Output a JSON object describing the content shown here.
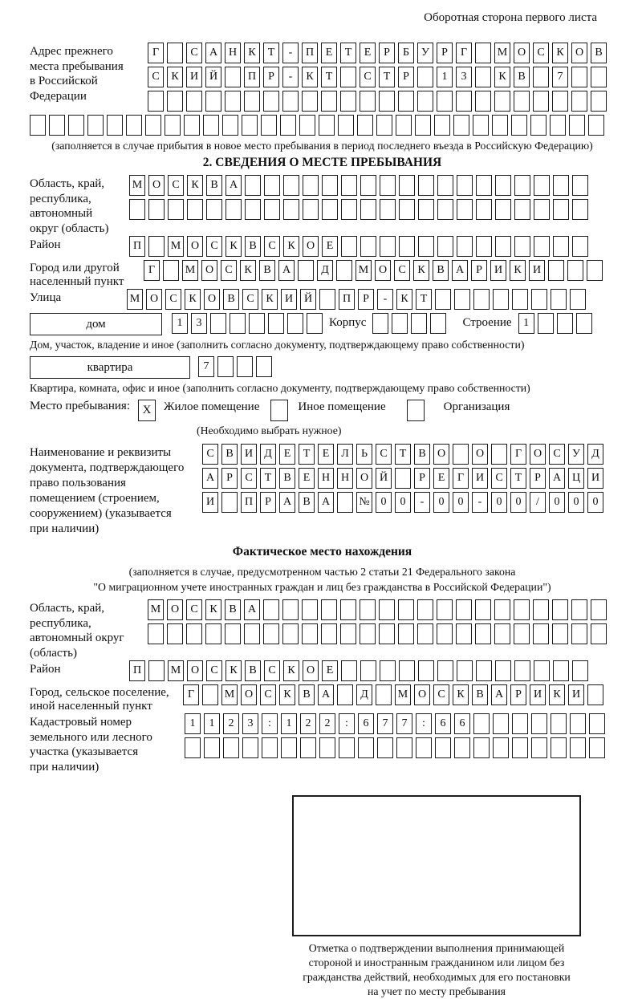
{
  "page_note": "Оборотная сторона первого листа",
  "prev_address": {
    "label_lines": [
      "Адрес прежнего",
      "места пребывания",
      "в Российской",
      "Федерации"
    ],
    "row1": "Г САНКТ-ПЕТЕРБУРГ МОСКОВ",
    "row2": "СКИЙ ПР-КТ СТР 13 КВ 7  ",
    "row3": "                        ",
    "row4": "                              ",
    "caption": "(заполняется в случае прибытия в новое место пребывания в период последнего въезда в Российскую Федерацию)"
  },
  "section2": {
    "title": "2. СВЕДЕНИЯ О МЕСТЕ ПРЕБЫВАНИЯ",
    "region": {
      "label_lines": [
        "Область, край,",
        "республика,",
        "автономный",
        "округ (область)"
      ],
      "row1": "МОСКВА                  ",
      "row2": "                        "
    },
    "district": {
      "label": "Район",
      "row": "П МОСКВСКОЕ             "
    },
    "city": {
      "label_lines": [
        "Город или другой",
        "населенный пункт"
      ],
      "row": "Г МОСКВА Д МОСКВАРИКИ   "
    },
    "street": {
      "label": "Улица",
      "row": "МОСКОВСКИЙ ПР-КТ        "
    },
    "house": {
      "box_label": "дом",
      "cells": "13      ",
      "korpus_label": "Корпус",
      "korpus_cells": "    ",
      "stroenie_label": "Строение",
      "stroenie_cells": "1   ",
      "caption": "Дом, участок, владение и иное (заполнить согласно документу, подтверждающему право собственности)"
    },
    "apartment": {
      "box_label": "квартира",
      "cells": "7   ",
      "caption": "Квартира, комната, офис и иное (заполнить согласно документу, подтверждающему право собственности)"
    },
    "stay_type": {
      "label": "Место пребывания:",
      "options": [
        {
          "label": "Жилое помещение",
          "mark": "Х"
        },
        {
          "label": "Иное помещение",
          "mark": ""
        },
        {
          "label": "Организация",
          "mark": ""
        }
      ],
      "note": "(Необходимо выбрать нужное)"
    },
    "document": {
      "label_lines": [
        "Наименование и реквизиты",
        "документа, подтверждающего",
        "право пользования",
        "помещением (строением,",
        "сооружением) (указывается",
        "при наличии)"
      ],
      "row1": "СВИДЕТЕЛЬСТВО О ГОСУД",
      "row2": "АРСТВЕННОЙ РЕГИСТРАЦИ",
      "row3": "И ПРАВА №00-00-00/000"
    }
  },
  "actual_location": {
    "title": "Фактическое место нахождения",
    "caption_lines": [
      "(заполняется в случае, предусмотренном частью 2 статьи 21 Федерального закона",
      "\"О миграционном учете иностранных граждан и лиц без гражданства в Российской Федерации\")"
    ],
    "region": {
      "label_lines": [
        "Область, край,",
        "республика,",
        "автономный округ",
        "(область)"
      ],
      "row1": "МОСКВА                  ",
      "row2": "                        "
    },
    "district": {
      "label": "Район",
      "row": "П МОСКВСКОЕ             "
    },
    "city": {
      "label_lines": [
        "Город, сельское поселение,",
        "иной населенный пункт"
      ],
      "row": "Г МОСКВА Д МОСКВАРИКИ "
    },
    "cadastral": {
      "label_lines": [
        "Кадастровый номер",
        "земельного или лесного",
        "участка (указывается",
        "при наличии)"
      ],
      "row1": "1123:122:677:66       ",
      "row2": "                      "
    }
  },
  "confirmation": {
    "caption_lines": [
      "Отметка о подтверждении выполнения принимающей",
      "стороной и иностранным гражданином или лицом без",
      "гражданства действий, необходимых для его постановки",
      "на учет по месту пребывания"
    ]
  }
}
